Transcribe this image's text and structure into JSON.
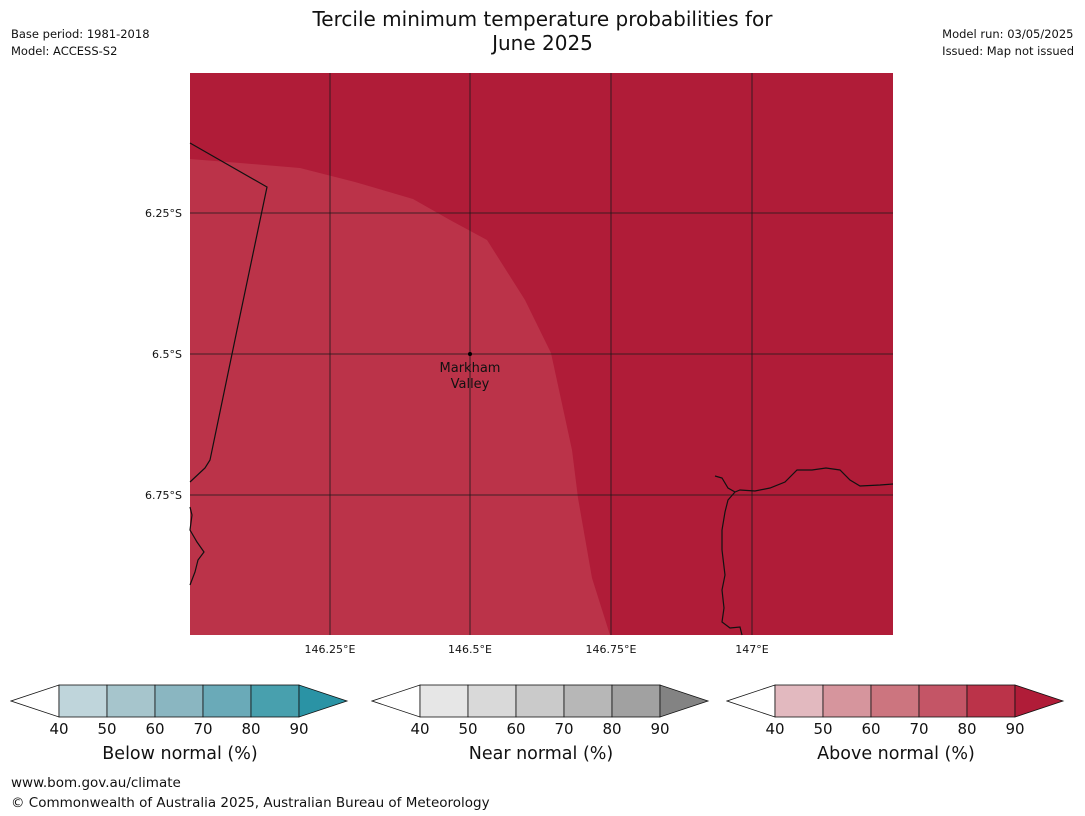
{
  "header": {
    "title_line1": "Tercile minimum temperature probabilities for",
    "title_line2": "June 2025",
    "base_period": "Base period: 1981-2018",
    "model": "Model: ACCESS-S2",
    "model_run": "Model run: 03/05/2025",
    "issued": "Issued: Map not issued"
  },
  "map": {
    "lat_labels": [
      "6.25°S",
      "6.5°S",
      "6.75°S"
    ],
    "lon_labels": [
      "146.25°E",
      "146.5°E",
      "146.75°E",
      "147°E"
    ],
    "place": {
      "name_line1": "Markham",
      "name_line2": "Valley",
      "lat": -6.5,
      "lon": 146.5
    },
    "extent": {
      "lon_min": 146.0,
      "lon_max": 147.25,
      "lat_top": -6.0,
      "lat_bottom": -7.0
    },
    "fills": [
      {
        "category": "Above normal",
        "range": "80-90",
        "color": "#b01c38"
      },
      {
        "category": "Above normal",
        "range": "70-80",
        "color": "#bb3349"
      }
    ]
  },
  "legends": [
    {
      "label": "Below normal (%)",
      "ticks": [
        "40",
        "50",
        "60",
        "70",
        "80",
        "90"
      ],
      "colors": [
        "#bfd5db",
        "#a6c5cc",
        "#8ab6c1",
        "#6aaab8",
        "#48a0ae",
        "#2a93a5"
      ]
    },
    {
      "label": "Near normal (%)",
      "ticks": [
        "40",
        "50",
        "60",
        "70",
        "80",
        "90"
      ],
      "colors": [
        "#e6e6e6",
        "#d9d9d9",
        "#cacaca",
        "#b7b7b7",
        "#a1a1a1",
        "#838383"
      ]
    },
    {
      "label": "Above normal (%)",
      "ticks": [
        "40",
        "50",
        "60",
        "70",
        "80",
        "90"
      ],
      "colors": [
        "#e2b9bf",
        "#d6959d",
        "#cc757f",
        "#c45566",
        "#bb3349",
        "#b01c38"
      ]
    }
  ],
  "footer": {
    "url": "www.bom.gov.au/climate",
    "copyright": "© Commonwealth of Australia 2025, Australian Bureau of Meteorology"
  }
}
